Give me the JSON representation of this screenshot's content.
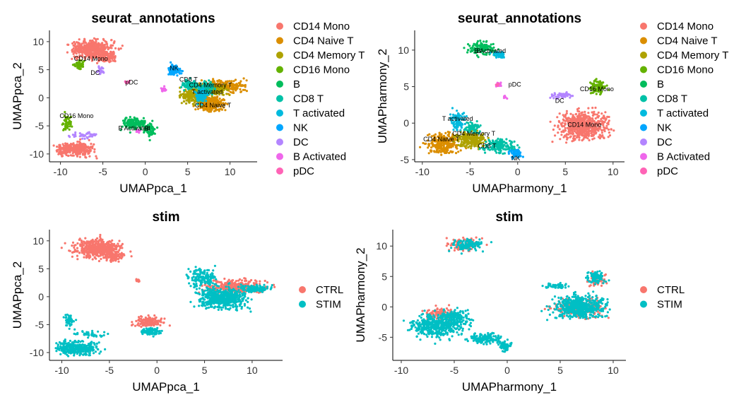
{
  "palette": {
    "CD14 Mono": "#F8766D",
    "CD4 Naive T": "#DB8E00",
    "CD4 Memory T": "#AEA200",
    "CD16 Mono": "#64B200",
    "B": "#00BD5C",
    "CD8 T": "#00C1A7",
    "T activated": "#00BADE",
    "NK": "#00A6FF",
    "DC": "#B385FF",
    "B Activated": "#EF67EB",
    "pDC": "#FF63B6",
    "CTRL": "#F8766D",
    "STIM": "#00BFC4"
  },
  "chart_data": [
    {
      "type": "scatter",
      "title": "seurat_annotations",
      "xlabel": "UMAPpca_1",
      "ylabel": "UMAPpca_2",
      "xlim": [
        -11.3,
        13.2
      ],
      "ylim": [
        -11.4,
        12
      ],
      "xticks": [
        -10,
        -5,
        0,
        5,
        10
      ],
      "yticks": [
        -10,
        -5,
        0,
        5,
        10
      ],
      "legend": [
        "CD14 Mono",
        "CD4 Naive T",
        "CD4 Memory T",
        "CD16 Mono",
        "B",
        "CD8 T",
        "T activated",
        "NK",
        "DC",
        "B Activated",
        "pDC"
      ],
      "series": [
        {
          "name": "CD14 Mono",
          "blobs": [
            [
              -6.2,
              8.6,
              2.4,
              1.6,
              500
            ],
            [
              -4.6,
              7.2,
              1,
              0.9,
              80
            ],
            [
              -8.3,
              -9.2,
              2.1,
              1.2,
              300
            ]
          ]
        },
        {
          "name": "CD4 Naive T",
          "blobs": [
            [
              7.8,
              -1,
              1.5,
              1.3,
              260
            ],
            [
              9.3,
              2,
              2.5,
              1,
              240
            ]
          ]
        },
        {
          "name": "CD4 Memory T",
          "blobs": [
            [
              5.8,
              0.4,
              1.5,
              1.4,
              220
            ],
            [
              8.4,
              1.4,
              1.4,
              0.9,
              120
            ]
          ]
        },
        {
          "name": "CD16 Mono",
          "blobs": [
            [
              -7.8,
              5.9,
              0.6,
              0.7,
              60
            ],
            [
              -9.2,
              -4.3,
              0.5,
              1.2,
              55
            ]
          ]
        },
        {
          "name": "B",
          "blobs": [
            [
              -1.3,
              -4.6,
              1.4,
              1.1,
              140
            ],
            [
              0.6,
              -5.8,
              0.7,
              1.1,
              70
            ]
          ]
        },
        {
          "name": "CD8 T",
          "blobs": [
            [
              5.4,
              2.2,
              1,
              0.9,
              100
            ],
            [
              7.3,
              1.7,
              1,
              1.2,
              90
            ]
          ]
        },
        {
          "name": "T activated",
          "blobs": [
            [
              6.6,
              0.4,
              0.6,
              1.3,
              70
            ]
          ]
        },
        {
          "name": "NK",
          "blobs": [
            [
              3.4,
              5,
              0.8,
              0.9,
              90
            ]
          ]
        },
        {
          "name": "DC",
          "blobs": [
            [
              -5.2,
              4.8,
              0.4,
              0.9,
              25
            ],
            [
              -7.2,
              -6.7,
              1.6,
              0.5,
              40
            ]
          ]
        },
        {
          "name": "B Activated",
          "blobs": [
            [
              2.2,
              1.5,
              0.4,
              0.5,
              15
            ],
            [
              -0.9,
              -6,
              0.4,
              0.3,
              10
            ]
          ]
        },
        {
          "name": "pDC",
          "blobs": [
            [
              -2.1,
              2.8,
              0.3,
              0.3,
              10
            ]
          ]
        }
      ],
      "annotations": [
        {
          "text": "CD14 Mono",
          "x": -6.4,
          "y": 6.6
        },
        {
          "text": "DC",
          "x": -5.9,
          "y": 4.1
        },
        {
          "text": "pDC",
          "x": -1.6,
          "y": 2.4
        },
        {
          "text": "NK",
          "x": 3.4,
          "y": 4.9
        },
        {
          "text": "CD8 T",
          "x": 5.1,
          "y": 2.9
        },
        {
          "text": "CD4 Memory T",
          "x": 7.7,
          "y": 1.9
        },
        {
          "text": "T activated",
          "x": 7.3,
          "y": 0.7
        },
        {
          "text": "CD4 Naive T",
          "x": 8,
          "y": -1.7
        },
        {
          "text": "CD16 Mono",
          "x": -8.1,
          "y": -3.6
        },
        {
          "text": "B Activated",
          "x": -1.3,
          "y": -5.8
        },
        {
          "text": "B",
          "x": 0.2,
          "y": -5.8
        }
      ]
    },
    {
      "type": "scatter",
      "title": "seurat_annotations",
      "xlabel": "UMAPharmony_1",
      "ylabel": "UMAPharmony_2",
      "xlim": [
        -10.8,
        11.2
      ],
      "ylim": [
        -5.3,
        12.7
      ],
      "xticks": [
        -10,
        -5,
        0,
        5,
        10
      ],
      "yticks": [
        -5,
        0,
        5,
        10
      ],
      "legend": [
        "CD14 Mono",
        "CD4 Naive T",
        "CD4 Memory T",
        "CD16 Mono",
        "B",
        "CD8 T",
        "T activated",
        "NK",
        "DC",
        "B Activated",
        "pDC"
      ],
      "series": [
        {
          "name": "CD14 Mono",
          "blobs": [
            [
              6.9,
              -0.4,
              2.5,
              1.8,
              600
            ]
          ]
        },
        {
          "name": "CD4 Naive T",
          "blobs": [
            [
              -7.8,
              -2.8,
              1.6,
              1.3,
              250
            ]
          ]
        },
        {
          "name": "CD4 Memory T",
          "blobs": [
            [
              -4.9,
              -2.2,
              1.6,
              1.1,
              220
            ]
          ]
        },
        {
          "name": "CD16 Mono",
          "blobs": [
            [
              8.4,
              4.9,
              0.8,
              0.9,
              100
            ]
          ]
        },
        {
          "name": "B",
          "blobs": [
            [
              -3.8,
              10.3,
              1.5,
              0.9,
              140
            ]
          ]
        },
        {
          "name": "CD8 T",
          "blobs": [
            [
              -2,
              -3.1,
              1.5,
              0.9,
              150
            ],
            [
              -4.7,
              -0.6,
              0.8,
              0.8,
              60
            ]
          ]
        },
        {
          "name": "T activated",
          "blobs": [
            [
              -6.3,
              0.4,
              0.7,
              1.2,
              80
            ],
            [
              -1.9,
              9.4,
              0.7,
              0.5,
              40
            ]
          ]
        },
        {
          "name": "NK",
          "blobs": [
            [
              -0.2,
              -4.2,
              0.6,
              0.6,
              60
            ]
          ]
        },
        {
          "name": "DC",
          "blobs": [
            [
              4.5,
              3.8,
              1.2,
              0.4,
              45
            ]
          ]
        },
        {
          "name": "B Activated",
          "blobs": [
            [
              -2,
              5.4,
              0.3,
              0.4,
              12
            ],
            [
              -1.3,
              3.5,
              0.2,
              0.3,
              6
            ]
          ]
        },
        {
          "name": "pDC",
          "blobs": [
            [
              -2.1,
              5.3,
              0.2,
              0.2,
              6
            ]
          ]
        }
      ],
      "annotations": [
        {
          "text": "B",
          "x": -4.1,
          "y": 9.6
        },
        {
          "text": "B Activated",
          "x": -2.9,
          "y": 9.6
        },
        {
          "text": "pDC",
          "x": -0.3,
          "y": 5
        },
        {
          "text": "CD16 Mono",
          "x": 8.3,
          "y": 4.4
        },
        {
          "text": "DC",
          "x": 4.4,
          "y": 2.8
        },
        {
          "text": "T activated",
          "x": -6.3,
          "y": 0.3
        },
        {
          "text": "CD14 Mono",
          "x": 7,
          "y": -0.5
        },
        {
          "text": "CD4 Memory T",
          "x": -4.6,
          "y": -1.7
        },
        {
          "text": "CD4 Naive T",
          "x": -8,
          "y": -2.5
        },
        {
          "text": "CD8 T",
          "x": -3.2,
          "y": -3.4
        },
        {
          "text": "NK",
          "x": -0.2,
          "y": -5.1
        }
      ]
    },
    {
      "type": "scatter",
      "title": "stim",
      "xlabel": "UMAPpca_1",
      "ylabel": "UMAPpca_2",
      "xlim": [
        -11.3,
        13.2
      ],
      "ylim": [
        -11.4,
        12
      ],
      "xticks": [
        -10,
        -5,
        0,
        5,
        10
      ],
      "yticks": [
        -10,
        -5,
        0,
        5,
        10
      ],
      "legend": [
        "CTRL",
        "STIM"
      ],
      "series": [
        {
          "name": "CTRL",
          "blobs": [
            [
              -6.2,
              8.6,
              2.4,
              1.6,
              500
            ],
            [
              -4.6,
              7.2,
              1,
              0.9,
              80
            ],
            [
              -2,
              3,
              0.3,
              0.3,
              10
            ],
            [
              -0.8,
              -4.5,
              1.5,
              0.9,
              120
            ],
            [
              8.2,
              1.8,
              3,
              1.3,
              300
            ]
          ]
        },
        {
          "name": "STIM",
          "blobs": [
            [
              -8.3,
              -9.2,
              2.1,
              1.2,
              340
            ],
            [
              -9.2,
              -4.3,
              0.5,
              1.2,
              55
            ],
            [
              -7.2,
              -6.7,
              1.6,
              0.5,
              40
            ],
            [
              -0.6,
              -6.2,
              1,
              0.6,
              90
            ],
            [
              6.9,
              -0.3,
              2.4,
              1.8,
              520
            ],
            [
              10.4,
              1.4,
              1.6,
              0.6,
              120
            ],
            [
              4.8,
              3.2,
              1.4,
              1.6,
              170
            ]
          ]
        }
      ]
    },
    {
      "type": "scatter",
      "title": "stim",
      "xlabel": "UMAPharmony_1",
      "ylabel": "UMAPharmony_2",
      "xlim": [
        -10.8,
        11.2
      ],
      "ylim": [
        -8.8,
        12.7
      ],
      "xticks": [
        -10,
        -5,
        0,
        5,
        10
      ],
      "yticks": [
        -5,
        0,
        5,
        10
      ],
      "legend": [
        "CTRL",
        "STIM"
      ],
      "series": [
        {
          "name": "CTRL",
          "blobs": [
            [
              -4,
              10.3,
              1.5,
              1,
              90
            ],
            [
              -6.3,
              -1.2,
              1.5,
              1.1,
              110
            ],
            [
              6.9,
              -0.2,
              2.4,
              1.6,
              200
            ],
            [
              8.5,
              4.5,
              0.8,
              0.9,
              60
            ]
          ]
        },
        {
          "name": "STIM",
          "blobs": [
            [
              -3.8,
              10.2,
              1.5,
              1,
              110
            ],
            [
              -6.6,
              -3.2,
              2.4,
              1.8,
              420
            ],
            [
              -2,
              -5.2,
              1.6,
              0.8,
              150
            ],
            [
              -0.2,
              -6.5,
              0.6,
              0.8,
              60
            ],
            [
              -5,
              -1.8,
              1.4,
              1.2,
              160
            ],
            [
              6.9,
              0,
              2.4,
              1.8,
              520
            ],
            [
              8.4,
              4.8,
              0.8,
              0.9,
              90
            ],
            [
              4.5,
              3.5,
              1.3,
              0.4,
              50
            ]
          ]
        }
      ]
    }
  ]
}
